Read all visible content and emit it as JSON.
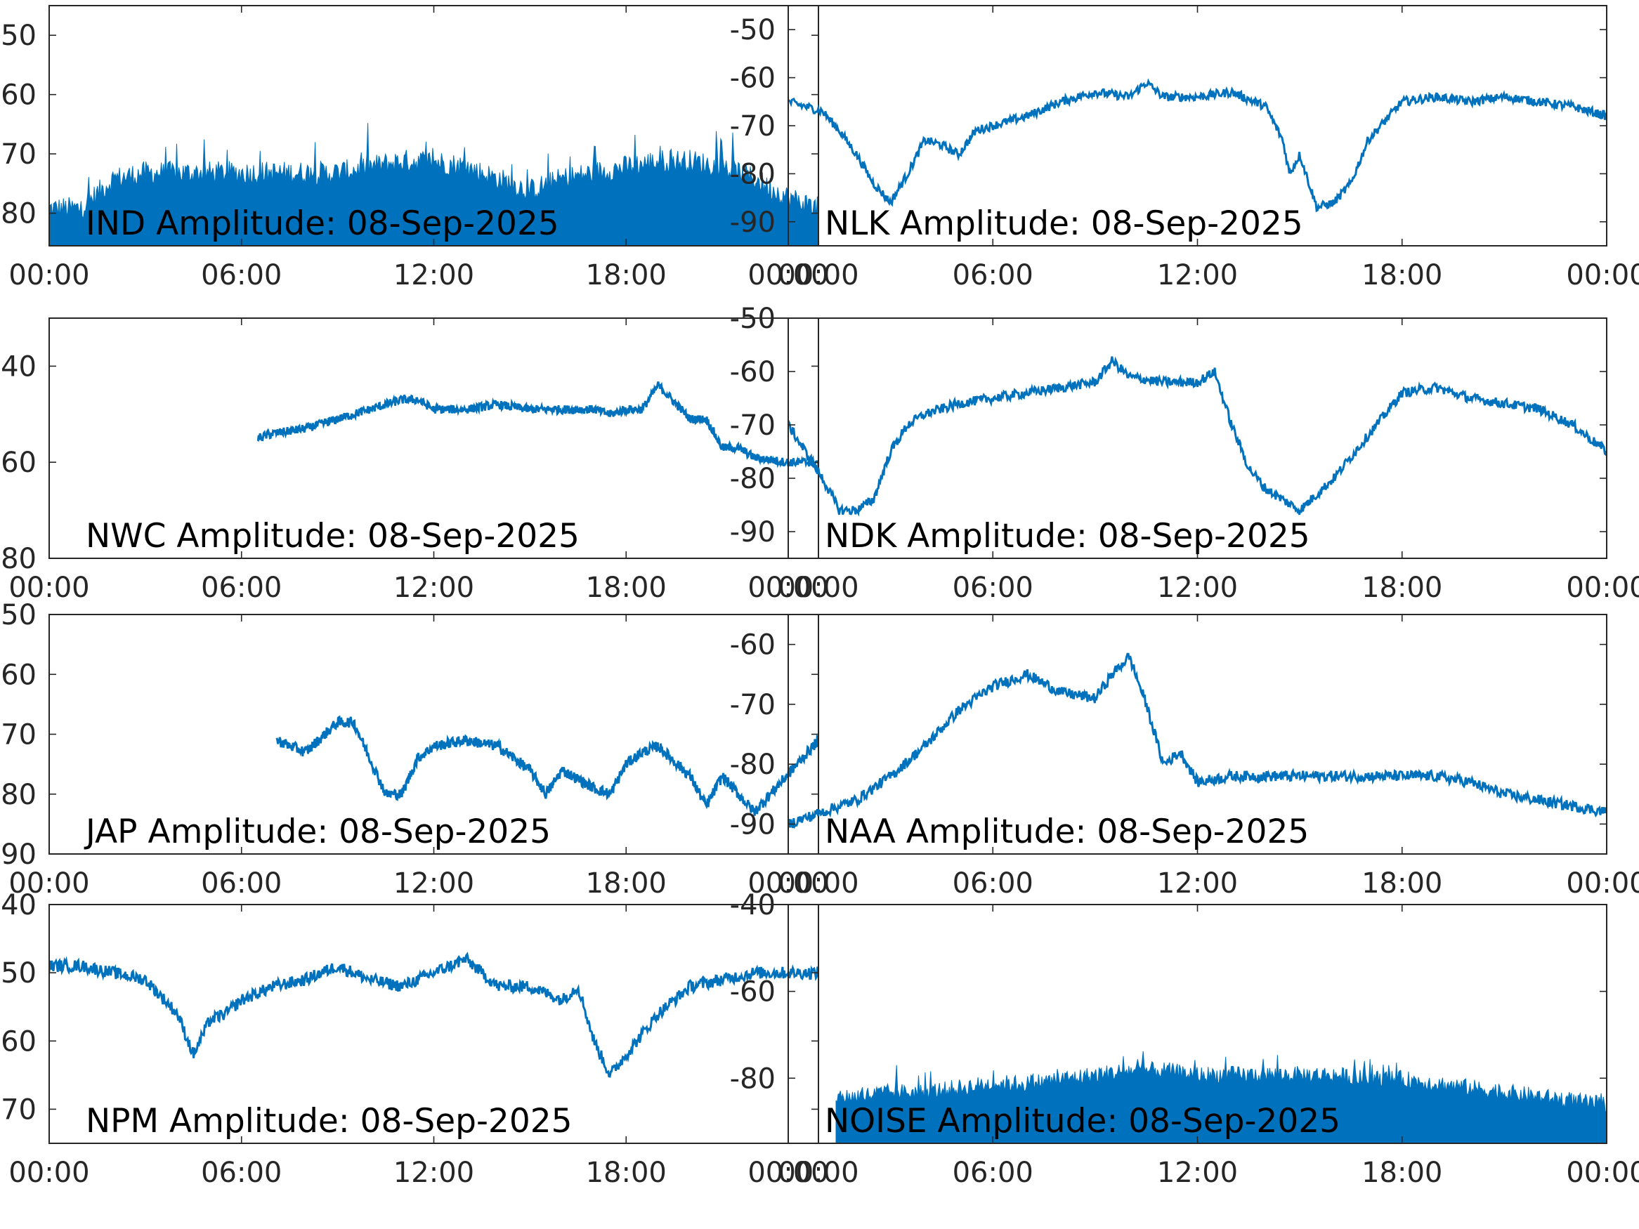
{
  "chart_data": [
    {
      "type": "line",
      "title": "IND Amplitude: 08-Sep-2025",
      "x_ticks": [
        "00:00",
        "06:00",
        "12:00",
        "18:00",
        "00:00"
      ],
      "y_ticks": [
        "50",
        "60",
        "70",
        "80"
      ],
      "ylim": [
        -85.5,
        -45
      ],
      "color": "#0072BD",
      "series": [
        {
          "x_hours": [
            0,
            1,
            2,
            3,
            4,
            5,
            6,
            7,
            8,
            9,
            10,
            11,
            12,
            13,
            14,
            15,
            16,
            17,
            18,
            19,
            20,
            21,
            22,
            23,
            24
          ],
          "y_low": [
            -85.5,
            -85.5,
            -85.5,
            -85.5,
            -85.5,
            -85.5,
            -85.5,
            -85.5,
            -85.5,
            -85.5,
            -85.5,
            -85.5,
            -85.5,
            -85.5,
            -85.5,
            -85.5,
            -85.5,
            -85.5,
            -85.5,
            -85.5,
            -85.5,
            -85.5,
            -85.5,
            -85.5,
            -85.5
          ],
          "y_high": [
            -80,
            -80,
            -75,
            -74,
            -74,
            -74,
            -74,
            -74,
            -74,
            -74,
            -73,
            -72,
            -72,
            -73,
            -75,
            -77,
            -75,
            -74,
            -73,
            -72,
            -72,
            -73,
            -75,
            -78,
            -80
          ]
        }
      ]
    },
    {
      "type": "line",
      "title": "NLK Amplitude: 08-Sep-2025",
      "x_ticks": [
        "00:00",
        "06:00",
        "12:00",
        "18:00",
        "00:00"
      ],
      "y_ticks": [
        "-50",
        "-60",
        "-70",
        "-80",
        "-90"
      ],
      "ylim": [
        -95,
        -45
      ],
      "color": "#0072BD",
      "series": [
        {
          "x_hours": [
            0,
            1,
            1.5,
            2,
            2.5,
            3,
            3.5,
            4,
            4.5,
            5,
            5.5,
            6,
            7,
            8,
            9,
            10,
            10.5,
            11,
            12,
            13,
            14,
            14.5,
            14.7,
            15,
            15.5,
            16,
            16.5,
            17,
            18,
            19,
            20,
            21,
            22,
            23,
            24
          ],
          "y": [
            -65,
            -67,
            -71,
            -76,
            -82,
            -86,
            -80,
            -73,
            -74,
            -76,
            -71,
            -70,
            -68,
            -65,
            -63,
            -64,
            -61,
            -64,
            -64,
            -63,
            -66,
            -73,
            -80,
            -76,
            -87,
            -86,
            -82,
            -73,
            -65,
            -64,
            -65,
            -64,
            -65,
            -66,
            -68
          ]
        }
      ]
    },
    {
      "type": "line",
      "title": "NWC Amplitude: 08-Sep-2025",
      "x_ticks": [
        "00:00",
        "06:00",
        "12:00",
        "18:00",
        "00:00"
      ],
      "y_ticks": [
        "40",
        "60",
        "80"
      ],
      "ylim": [
        -80,
        -30
      ],
      "color": "#0072BD",
      "series": [
        {
          "x_hours": [
            6.5,
            7,
            8,
            9,
            10,
            11,
            11.5,
            12,
            13,
            14,
            15,
            16,
            17,
            17.5,
            18,
            18.5,
            19,
            19.3,
            20,
            20.5,
            21,
            21.5,
            22,
            23,
            24
          ],
          "y": [
            -55,
            -54,
            -53,
            -51,
            -49,
            -47,
            -47,
            -49,
            -49,
            -48,
            -49,
            -49,
            -49,
            -50,
            -49,
            -49,
            -44,
            -46,
            -51,
            -51,
            -57,
            -57,
            -59,
            -60,
            -60
          ]
        }
      ]
    },
    {
      "type": "line",
      "title": "NDK Amplitude: 08-Sep-2025",
      "x_ticks": [
        "00:00",
        "06:00",
        "12:00",
        "18:00",
        "00:00"
      ],
      "y_ticks": [
        "-50",
        "-60",
        "-70",
        "-80",
        "-90"
      ],
      "ylim": [
        -95,
        -50
      ],
      "color": "#0072BD",
      "series": [
        {
          "x_hours": [
            0,
            0.5,
            1,
            1.5,
            2,
            2.5,
            3,
            3.5,
            4,
            5,
            6,
            7,
            8,
            9,
            9.5,
            10,
            11,
            12,
            12.5,
            13,
            13.5,
            14,
            14.5,
            15,
            16,
            17,
            18,
            19,
            20,
            21,
            22,
            23,
            24
          ],
          "y": [
            -70,
            -75,
            -80,
            -86,
            -86,
            -84,
            -75,
            -70,
            -68,
            -66,
            -65,
            -64,
            -63,
            -62,
            -58,
            -61,
            -62,
            -62,
            -60,
            -70,
            -78,
            -82,
            -84,
            -86,
            -80,
            -72,
            -64,
            -63,
            -65,
            -66,
            -67,
            -70,
            -75
          ]
        }
      ]
    },
    {
      "type": "line",
      "title": "JAP Amplitude: 08-Sep-2025",
      "x_ticks": [
        "00:00",
        "06:00",
        "12:00",
        "18:00",
        "00:00"
      ],
      "y_ticks": [
        "50",
        "60",
        "70",
        "80",
        "90"
      ],
      "ylim": [
        -90,
        -50
      ],
      "color": "#0072BD",
      "series": [
        {
          "x_hours": [
            7.1,
            8,
            9,
            9.5,
            10,
            10.5,
            11,
            11.5,
            12,
            13,
            14,
            15,
            15.5,
            16,
            17,
            17.5,
            18,
            18.5,
            19,
            20,
            20.5,
            21,
            22,
            23,
            24
          ],
          "y": [
            -71,
            -73,
            -68,
            -68,
            -74,
            -80,
            -80,
            -74,
            -72,
            -71,
            -72,
            -76,
            -80,
            -76,
            -79,
            -80,
            -75,
            -73,
            -72,
            -77,
            -82,
            -77,
            -83,
            -77,
            -71
          ]
        }
      ]
    },
    {
      "type": "line",
      "title": "NAA Amplitude: 08-Sep-2025",
      "x_ticks": [
        "00:00",
        "06:00",
        "12:00",
        "18:00",
        "00:00"
      ],
      "y_ticks": [
        "-60",
        "-70",
        "-80",
        "-90"
      ],
      "ylim": [
        -95,
        -55
      ],
      "color": "#0072BD",
      "series": [
        {
          "x_hours": [
            0,
            1,
            2,
            3,
            4,
            5,
            6,
            7,
            8,
            9,
            9.5,
            10,
            10.5,
            11,
            11.5,
            12,
            13,
            14,
            15,
            16,
            17,
            18,
            19,
            20,
            21,
            22,
            23,
            24
          ],
          "y": [
            -90,
            -88,
            -86,
            -82,
            -77,
            -71,
            -67,
            -65,
            -68,
            -69,
            -65,
            -62,
            -70,
            -80,
            -78,
            -83,
            -82,
            -82,
            -82,
            -82,
            -82,
            -82,
            -82,
            -83,
            -85,
            -86,
            -87,
            -88
          ]
        }
      ]
    },
    {
      "type": "line",
      "title": "NPM Amplitude: 08-Sep-2025",
      "x_ticks": [
        "00:00",
        "06:00",
        "12:00",
        "18:00",
        "00:00"
      ],
      "y_ticks": [
        "40",
        "50",
        "60",
        "70"
      ],
      "ylim": [
        -75,
        -40
      ],
      "color": "#0072BD",
      "series": [
        {
          "x_hours": [
            0,
            1,
            2,
            3,
            4,
            4.5,
            5,
            5.5,
            6,
            7,
            8,
            9,
            10,
            11,
            12,
            13,
            14,
            15,
            16,
            16.5,
            17,
            17.5,
            18,
            19,
            20,
            21,
            22,
            23,
            24
          ],
          "y": [
            -49,
            -49,
            -50,
            -51,
            -56,
            -62,
            -57,
            -56,
            -54,
            -52,
            -51,
            -49,
            -51,
            -52,
            -50,
            -48,
            -52,
            -52,
            -54,
            -52,
            -60,
            -65,
            -62,
            -56,
            -52,
            -51,
            -50,
            -50,
            -50
          ]
        }
      ]
    },
    {
      "type": "line",
      "title": "NOISE Amplitude: 08-Sep-2025",
      "x_ticks": [
        "00:00",
        "06:00",
        "12:00",
        "18:00",
        "00:00"
      ],
      "y_ticks": [
        "-40",
        "-60",
        "-80"
      ],
      "ylim": [
        -95,
        -40
      ],
      "color": "#0072BD",
      "series": [
        {
          "x_hours": [
            1.4,
            2,
            3,
            4,
            5,
            6,
            7,
            8,
            9,
            10,
            11,
            12,
            13,
            14,
            15,
            16,
            17,
            18,
            19,
            20,
            21,
            22,
            23,
            24
          ],
          "y_low": [
            -95,
            -95,
            -95,
            -95,
            -95,
            -95,
            -95,
            -95,
            -95,
            -95,
            -95,
            -95,
            -95,
            -95,
            -95,
            -95,
            -95,
            -95,
            -95,
            -95,
            -95,
            -95,
            -95,
            -95
          ],
          "y_high": [
            -85,
            -85,
            -84,
            -84,
            -83,
            -82,
            -82,
            -81,
            -80,
            -79,
            -79,
            -80,
            -80,
            -80,
            -80,
            -80,
            -81,
            -81,
            -82,
            -83,
            -84,
            -85,
            -86,
            -87
          ]
        }
      ]
    }
  ]
}
